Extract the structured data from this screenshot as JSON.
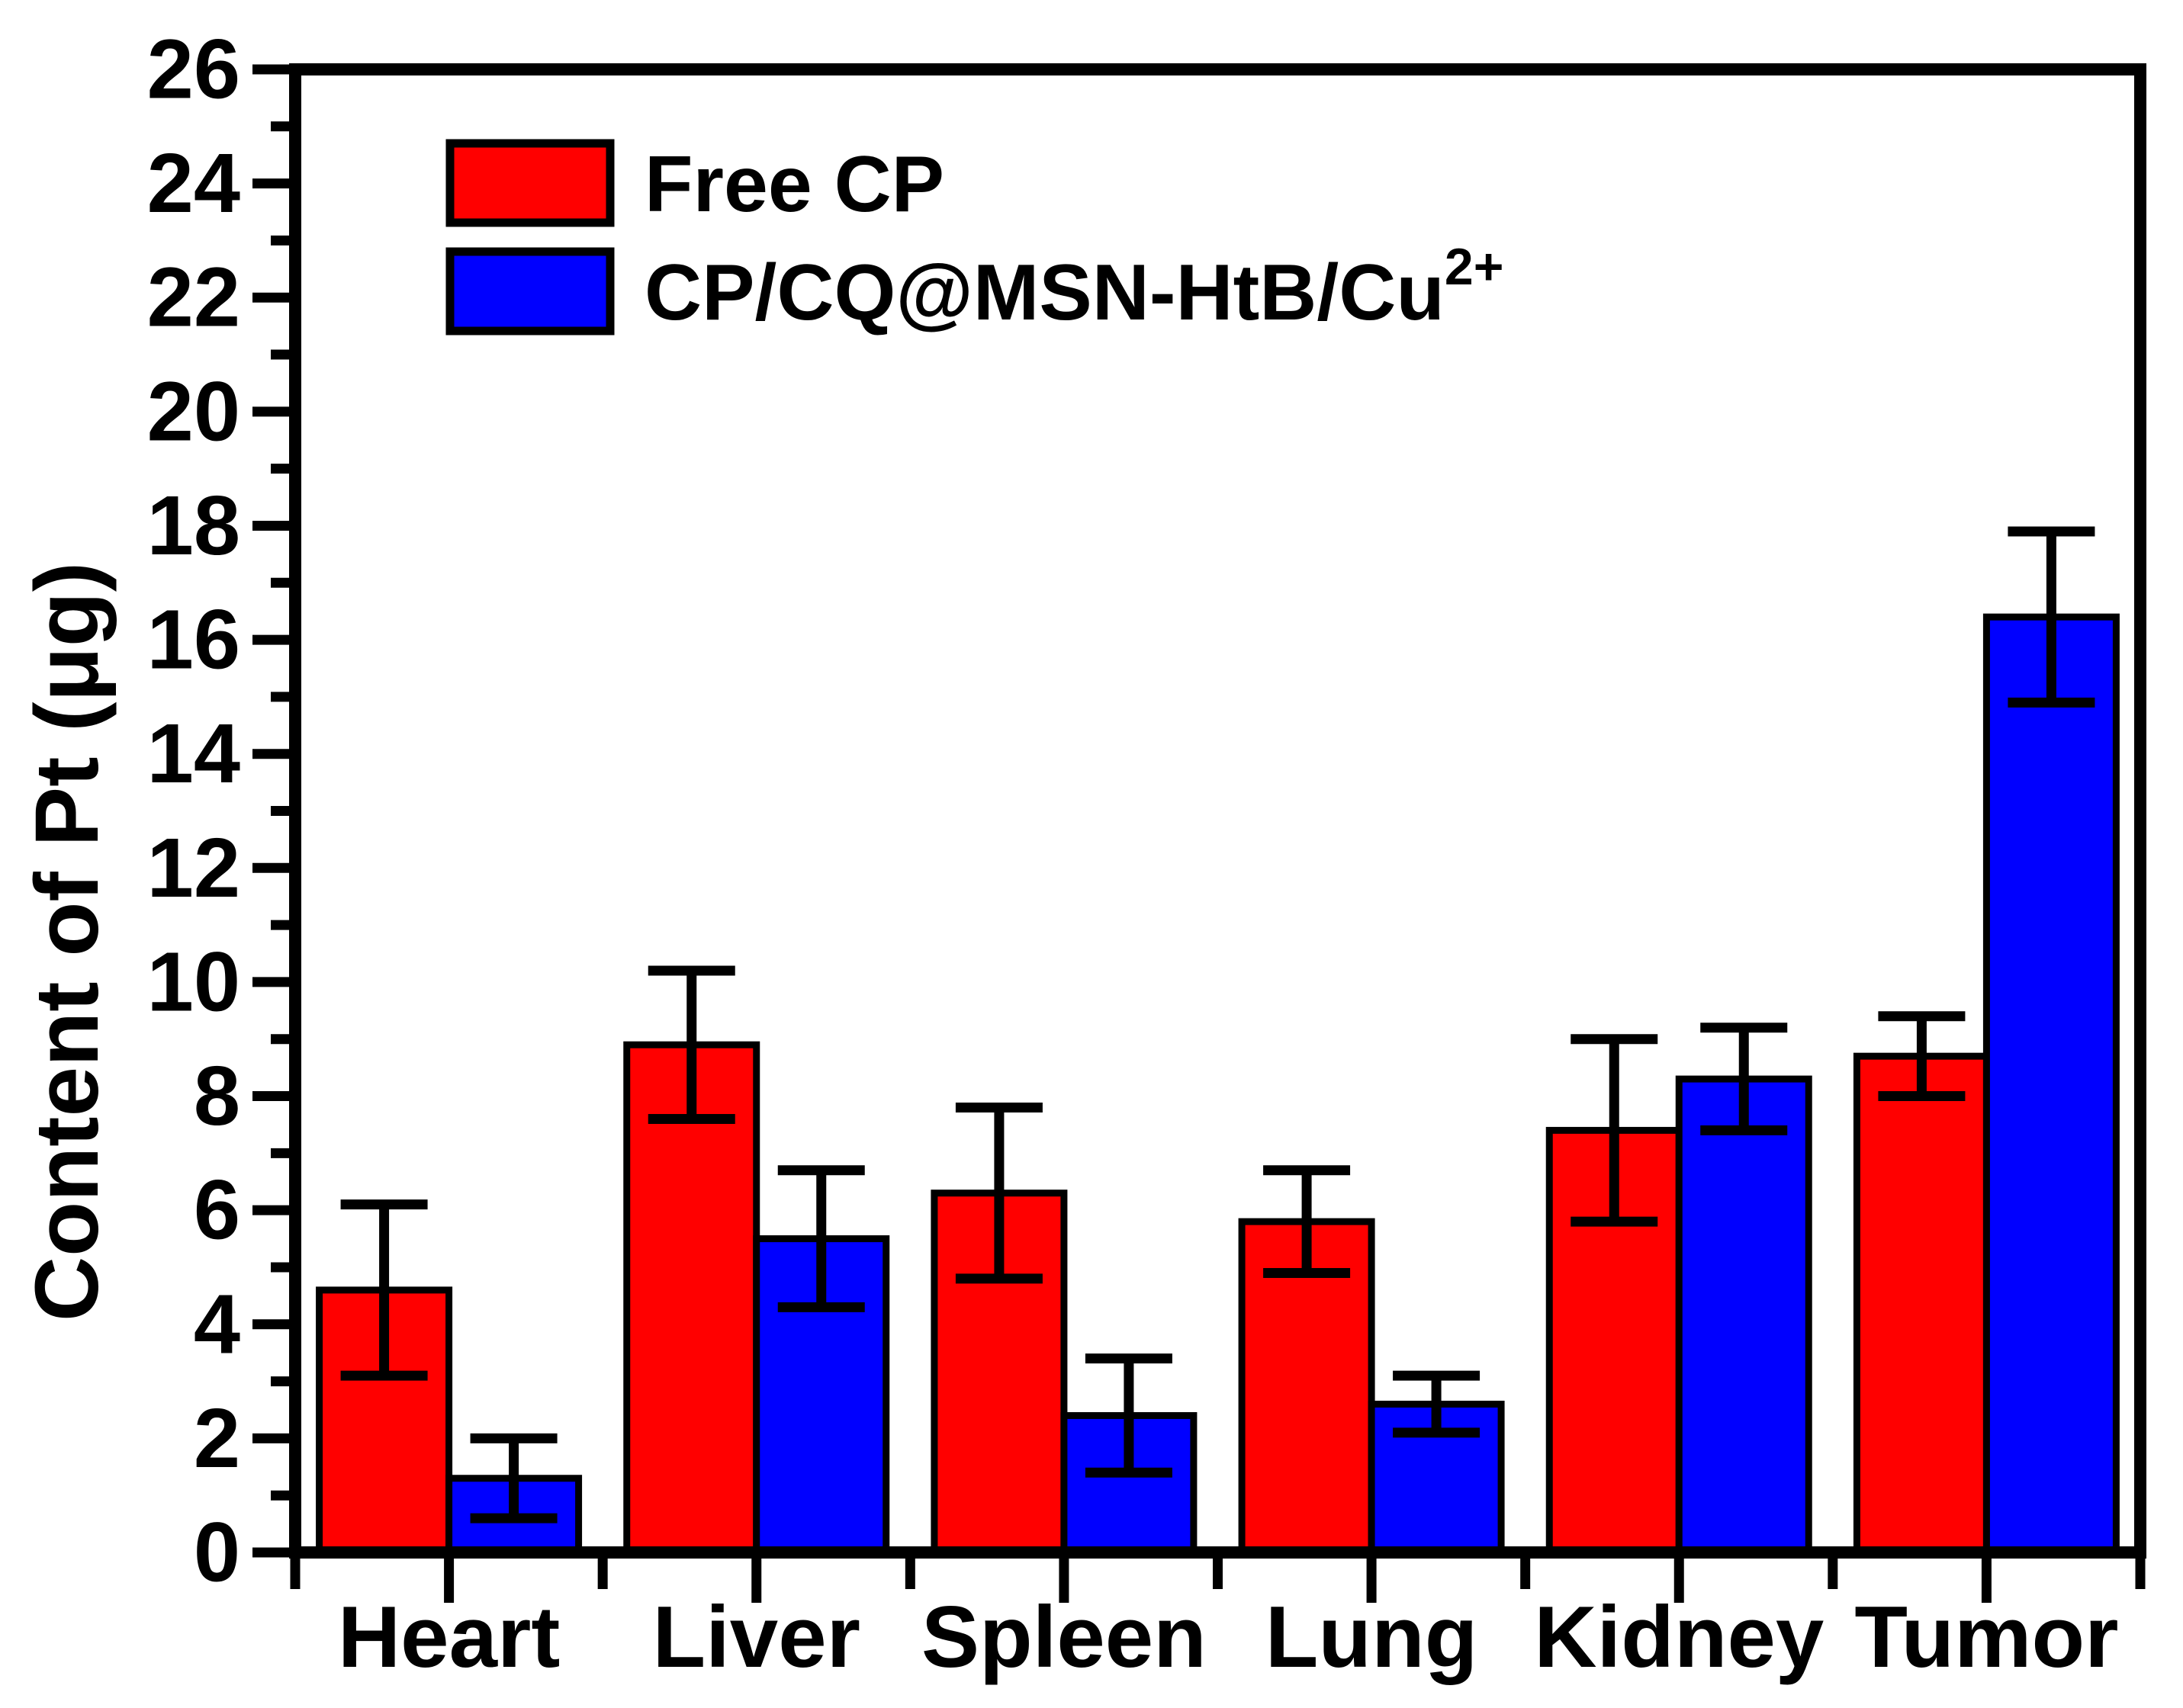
{
  "figure": {
    "background": "#ffffff",
    "kind": "scientific-bar-figure"
  },
  "chart_data": {
    "type": "bar",
    "title": "",
    "xlabel": "",
    "ylabel": "Content of Pt (μg)",
    "ylim": [
      0,
      26
    ],
    "y_major_step": 2,
    "y_minor_step": 1,
    "grid": false,
    "error_bars": true,
    "legend_position": "top-left",
    "frame": "full-box",
    "categories": [
      "Heart",
      "Liver",
      "Spleen",
      "Lung",
      "Kidney",
      "Tumor"
    ],
    "series": [
      {
        "name": "Free CP",
        "label_parts": [
          "Free CP",
          ""
        ],
        "color": "#ff0000",
        "values": [
          4.6,
          8.9,
          6.3,
          5.8,
          7.4,
          8.7
        ],
        "errors": [
          1.5,
          1.3,
          1.5,
          0.9,
          1.6,
          0.7
        ]
      },
      {
        "name": "CP/CQ@MSN-HtB/Cu2+",
        "label_parts": [
          "CP/CQ@MSN-HtB/Cu",
          "2+"
        ],
        "color": "#0000ff",
        "values": [
          1.3,
          5.5,
          2.4,
          2.6,
          8.3,
          16.4
        ],
        "errors": [
          0.7,
          1.2,
          1.0,
          0.5,
          0.9,
          1.5
        ]
      }
    ],
    "colors": {
      "bar_outline": "#000000",
      "axis": "#000000",
      "error_bar": "#000000"
    },
    "y_tick_labels": [
      "0",
      "2",
      "4",
      "6",
      "8",
      "10",
      "12",
      "14",
      "16",
      "18",
      "20",
      "22",
      "24",
      "26"
    ]
  }
}
